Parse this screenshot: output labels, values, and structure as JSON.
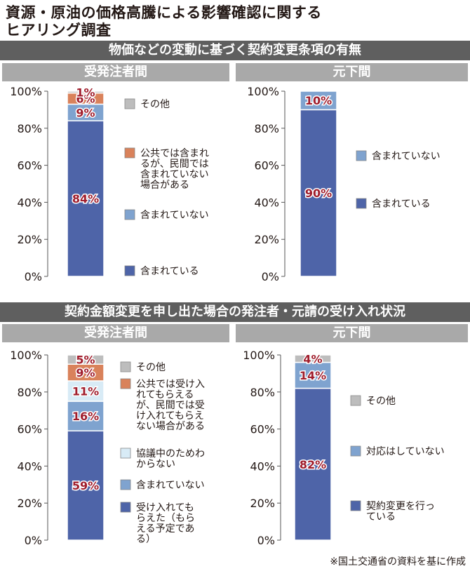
{
  "title_line1": "資源・原油の価格高騰による影響確認に関する",
  "title_line2": "ヒアリング調査",
  "section1_title": "物価などの変動に基づく契約変更条項の有無",
  "section2_title": "契約金額変更を申し出た場合の発注者・元請の受け入れ状況",
  "left_header": "受発注者間",
  "right_header": "元下間",
  "source": "※国土交通省の資料を基に作成",
  "colors": {
    "navy": "#4e64a8",
    "lightblue": "#7fa3cf",
    "paleblue": "#d8ebf6",
    "orange": "#d9825b",
    "gray": "#bdbdbd",
    "label_red": "#a01d2c"
  },
  "chart_data": [
    {
      "type": "bar",
      "stacked": true,
      "section": "物価などの変動に基づく契約変更条項の有無",
      "panel": "受発注者間",
      "y_ticks": [
        "0%",
        "20%",
        "40%",
        "60%",
        "80%",
        "100%"
      ],
      "ylim": [
        0,
        100
      ],
      "series": [
        {
          "name": "含まれている",
          "value": 84,
          "label": "84%",
          "color": "#4e64a8"
        },
        {
          "name": "含まれていない",
          "value": 9,
          "label": "9%",
          "color": "#7fa3cf"
        },
        {
          "name": "公共では含まれるが、民間では含まれていない場合がある",
          "value": 6,
          "label": "6%",
          "color": "#d9825b"
        },
        {
          "name": "その他",
          "value": 1,
          "label": "1%",
          "color": "#bdbdbd"
        }
      ],
      "legend": [
        {
          "lines": [
            "その他"
          ],
          "color": "#bdbdbd"
        },
        {
          "lines": [
            "公共では含まれ",
            "るが、民間では",
            "含まれていない",
            "場合がある"
          ],
          "color": "#d9825b"
        },
        {
          "lines": [
            "含まれていない"
          ],
          "color": "#7fa3cf"
        },
        {
          "lines": [
            "含まれている"
          ],
          "color": "#4e64a8"
        }
      ]
    },
    {
      "type": "bar",
      "stacked": true,
      "section": "物価などの変動に基づく契約変更条項の有無",
      "panel": "元下間",
      "y_ticks": [
        "0%",
        "20%",
        "40%",
        "60%",
        "80%",
        "100%"
      ],
      "ylim": [
        0,
        100
      ],
      "series": [
        {
          "name": "含まれている",
          "value": 90,
          "label": "90%",
          "color": "#4e64a8"
        },
        {
          "name": "含まれていない",
          "value": 10,
          "label": "10%",
          "color": "#7fa3cf"
        }
      ],
      "legend": [
        {
          "lines": [
            "含まれていない"
          ],
          "color": "#7fa3cf"
        },
        {
          "lines": [
            "含まれている"
          ],
          "color": "#4e64a8"
        }
      ]
    },
    {
      "type": "bar",
      "stacked": true,
      "section": "契約金額変更を申し出た場合の発注者・元請の受け入れ状況",
      "panel": "受発注者間",
      "y_ticks": [
        "0%",
        "20%",
        "40%",
        "60%",
        "80%",
        "100%"
      ],
      "ylim": [
        0,
        100
      ],
      "series": [
        {
          "name": "受け入れてもらえた（もらえる予定である）",
          "value": 59,
          "label": "59%",
          "color": "#4e64a8"
        },
        {
          "name": "含まれていない",
          "value": 16,
          "label": "16%",
          "color": "#7fa3cf"
        },
        {
          "name": "協議中のためわからない",
          "value": 11,
          "label": "11%",
          "color": "#d8ebf6"
        },
        {
          "name": "公共では受け入れてもらえるが、民間では受け入れてもらえない場合がある",
          "value": 9,
          "label": "9%",
          "color": "#d9825b"
        },
        {
          "name": "その他",
          "value": 5,
          "label": "5%",
          "color": "#bdbdbd"
        }
      ],
      "legend": [
        {
          "lines": [
            "その他"
          ],
          "color": "#bdbdbd"
        },
        {
          "lines": [
            "公共では受け入",
            "れてもらえる",
            "が、民間では受",
            "け入れてもらえ",
            "ない場合がある"
          ],
          "color": "#d9825b"
        },
        {
          "lines": [
            "協議中のためわ",
            "からない"
          ],
          "color": "#d8ebf6"
        },
        {
          "lines": [
            "含まれていない"
          ],
          "color": "#7fa3cf"
        },
        {
          "lines": [
            "受け入れても",
            "らえた（もら",
            "える予定であ",
            "る）"
          ],
          "color": "#4e64a8"
        }
      ]
    },
    {
      "type": "bar",
      "stacked": true,
      "section": "契約金額変更を申し出た場合の発注者・元請の受け入れ状況",
      "panel": "元下間",
      "y_ticks": [
        "0%",
        "20%",
        "40%",
        "60%",
        "80%",
        "100%"
      ],
      "ylim": [
        0,
        100
      ],
      "series": [
        {
          "name": "契約変更を行っている",
          "value": 82,
          "label": "82%",
          "color": "#4e64a8"
        },
        {
          "name": "対応はしていない",
          "value": 14,
          "label": "14%",
          "color": "#7fa3cf"
        },
        {
          "name": "その他",
          "value": 4,
          "label": "4%",
          "color": "#bdbdbd"
        }
      ],
      "legend": [
        {
          "lines": [
            "その他"
          ],
          "color": "#bdbdbd"
        },
        {
          "lines": [
            "対応はしていない"
          ],
          "color": "#7fa3cf"
        },
        {
          "lines": [
            "契約変更を行っ",
            "ている"
          ],
          "color": "#4e64a8"
        }
      ]
    }
  ]
}
